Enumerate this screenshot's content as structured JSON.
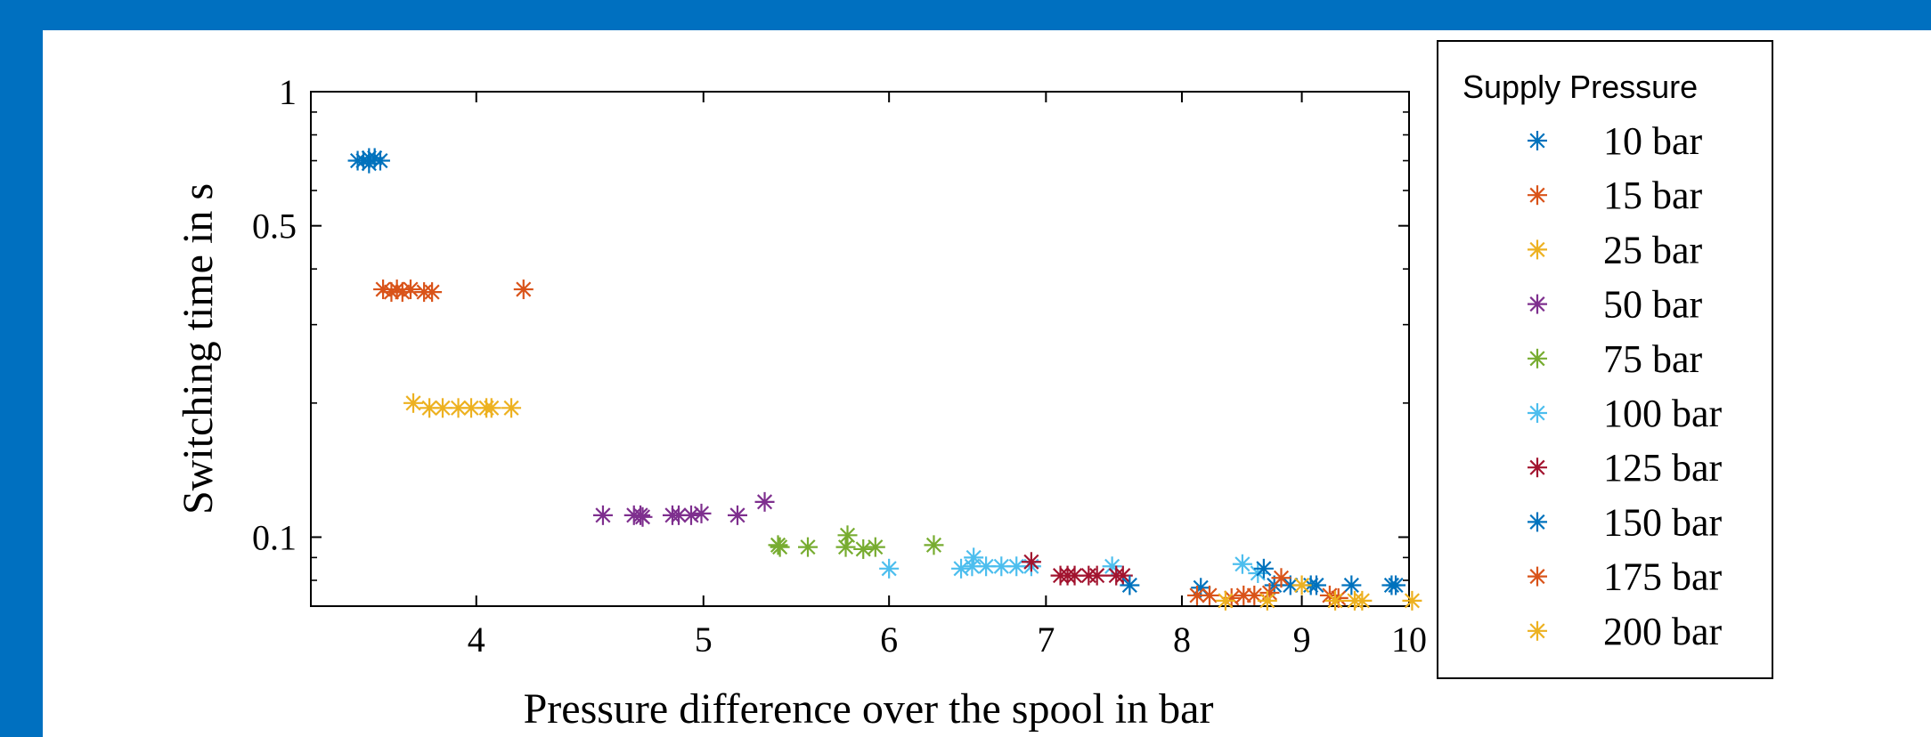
{
  "chart_data": {
    "type": "scatter",
    "title": "",
    "xlabel": "Pressure difference over the spool in bar",
    "ylabel": "Switching time in s",
    "xscale": "log",
    "yscale": "log",
    "xlim": [
      3.4,
      10
    ],
    "ylim": [
      0.07,
      1
    ],
    "xticks": [
      4,
      5,
      6,
      7,
      8,
      9,
      10
    ],
    "xtick_labels": [
      "4",
      "5",
      "6",
      "7",
      "8",
      "9",
      "10"
    ],
    "yticks": [
      0.1,
      0.5,
      1
    ],
    "ytick_labels": [
      "0.1",
      "0.5",
      "1"
    ],
    "marker": "asterisk",
    "grid": false,
    "legend_title": "Supply Pressure",
    "legend_position": "outside-right",
    "series": [
      {
        "name": "10 bar",
        "color": "#0072BD",
        "points": [
          [
            3.56,
            0.7
          ],
          [
            3.58,
            0.7
          ],
          [
            3.6,
            0.71
          ],
          [
            3.62,
            0.71
          ],
          [
            3.64,
            0.7
          ],
          [
            3.6,
            0.69
          ]
        ]
      },
      {
        "name": "15 bar",
        "color": "#D95319",
        "points": [
          [
            3.65,
            0.36
          ],
          [
            3.68,
            0.355
          ],
          [
            3.7,
            0.36
          ],
          [
            3.72,
            0.355
          ],
          [
            3.75,
            0.36
          ],
          [
            3.8,
            0.355
          ],
          [
            3.83,
            0.355
          ],
          [
            4.19,
            0.36
          ]
        ]
      },
      {
        "name": "25 bar",
        "color": "#EDB120",
        "points": [
          [
            3.76,
            0.2
          ],
          [
            3.82,
            0.195
          ],
          [
            3.87,
            0.195
          ],
          [
            3.93,
            0.195
          ],
          [
            3.98,
            0.195
          ],
          [
            4.04,
            0.195
          ],
          [
            4.06,
            0.195
          ],
          [
            4.14,
            0.195
          ]
        ]
      },
      {
        "name": "50 bar",
        "color": "#7E2F8E",
        "points": [
          [
            4.53,
            0.112
          ],
          [
            4.67,
            0.112
          ],
          [
            4.7,
            0.112
          ],
          [
            4.71,
            0.111
          ],
          [
            4.85,
            0.112
          ],
          [
            4.88,
            0.112
          ],
          [
            4.94,
            0.112
          ],
          [
            4.99,
            0.113
          ],
          [
            5.17,
            0.112
          ],
          [
            5.31,
            0.12
          ]
        ]
      },
      {
        "name": "75 bar",
        "color": "#77AC30",
        "points": [
          [
            5.38,
            0.096
          ],
          [
            5.39,
            0.095
          ],
          [
            5.54,
            0.095
          ],
          [
            5.75,
            0.095
          ],
          [
            5.76,
            0.101
          ],
          [
            5.85,
            0.094
          ],
          [
            5.92,
            0.095
          ],
          [
            6.27,
            0.096
          ]
        ]
      },
      {
        "name": "100 bar",
        "color": "#4DBEEE",
        "points": [
          [
            6.0,
            0.085
          ],
          [
            6.44,
            0.085
          ],
          [
            6.51,
            0.086
          ],
          [
            6.52,
            0.09
          ],
          [
            6.6,
            0.086
          ],
          [
            6.7,
            0.086
          ],
          [
            6.8,
            0.086
          ],
          [
            6.9,
            0.086
          ],
          [
            7.47,
            0.086
          ],
          [
            8.49,
            0.087
          ],
          [
            8.62,
            0.083
          ]
        ]
      },
      {
        "name": "125 bar",
        "color": "#A2142F",
        "points": [
          [
            6.9,
            0.088
          ],
          [
            7.1,
            0.082
          ],
          [
            7.15,
            0.082
          ],
          [
            7.2,
            0.082
          ],
          [
            7.3,
            0.082
          ],
          [
            7.36,
            0.082
          ],
          [
            7.5,
            0.082
          ],
          [
            7.55,
            0.082
          ]
        ]
      },
      {
        "name": "150 bar",
        "color": "#0072BD",
        "points": [
          [
            7.6,
            0.078
          ],
          [
            8.15,
            0.077
          ],
          [
            8.67,
            0.085
          ],
          [
            8.76,
            0.078
          ],
          [
            8.9,
            0.078
          ],
          [
            9.08,
            0.078
          ],
          [
            9.13,
            0.078
          ],
          [
            9.45,
            0.078
          ],
          [
            9.83,
            0.078
          ],
          [
            9.87,
            0.078
          ]
        ]
      },
      {
        "name": "175 bar",
        "color": "#D95319",
        "points": [
          [
            8.12,
            0.074
          ],
          [
            8.22,
            0.074
          ],
          [
            8.4,
            0.073
          ],
          [
            8.5,
            0.074
          ],
          [
            8.59,
            0.074
          ],
          [
            8.72,
            0.075
          ],
          [
            8.82,
            0.081
          ],
          [
            9.25,
            0.074
          ],
          [
            9.33,
            0.073
          ]
        ]
      },
      {
        "name": "200 bar",
        "color": "#EDB120",
        "points": [
          [
            8.35,
            0.072
          ],
          [
            8.7,
            0.072
          ],
          [
            9.0,
            0.078
          ],
          [
            9.3,
            0.072
          ],
          [
            9.48,
            0.072
          ],
          [
            9.55,
            0.072
          ],
          [
            10.03,
            0.072
          ]
        ]
      }
    ]
  }
}
